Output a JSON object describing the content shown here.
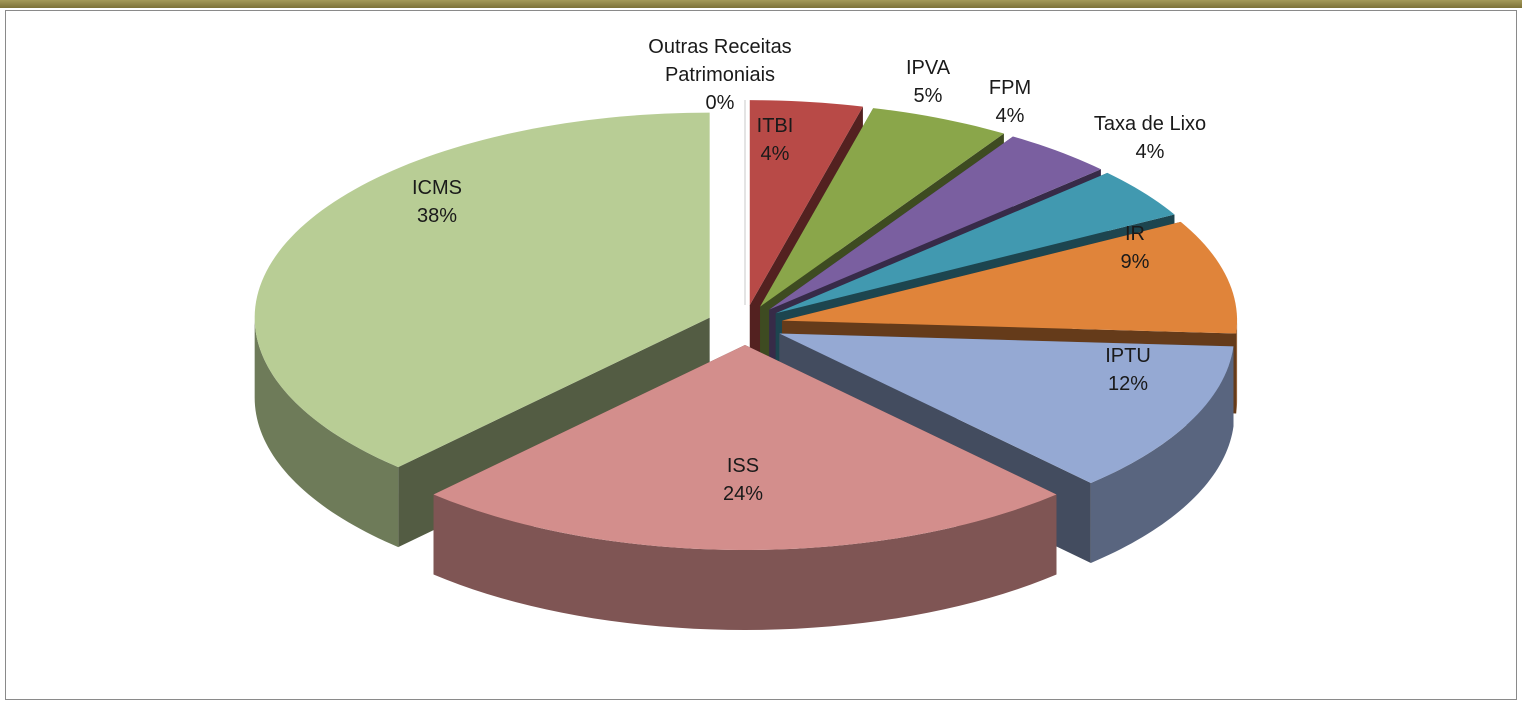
{
  "chart_data": {
    "type": "pie3d",
    "categories": [
      "Outras Receitas Patrimoniais",
      "ITBI",
      "IPVA",
      "FPM",
      "Taxa de Lixo",
      "IR",
      "IPTU",
      "ISS",
      "ICMS"
    ],
    "values": [
      0,
      4,
      5,
      4,
      4,
      9,
      12,
      24,
      38
    ],
    "value_labels": [
      "0%",
      "4%",
      "5%",
      "4%",
      "4%",
      "9%",
      "12%",
      "24%",
      "38%"
    ],
    "colors": [
      "#a0a0a0",
      "#b84a47",
      "#8aa64a",
      "#7a5fa0",
      "#4199b0",
      "#e0843a",
      "#95a9d3",
      "#d38e8c",
      "#b8cd95"
    ]
  }
}
